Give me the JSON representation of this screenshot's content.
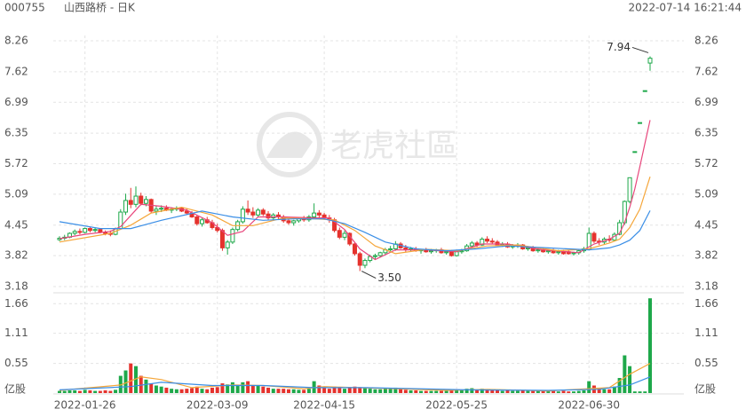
{
  "chart_data": {
    "type": "candlestick",
    "symbol": "000755",
    "title": "山西路桥 - 日K",
    "timestamp": "2022-07-14 16:21:44",
    "up_color": "#1ea84a",
    "down_color": "#e5322d",
    "ylim": [
      3.18,
      8.26
    ],
    "yticks": [
      3.18,
      3.82,
      4.45,
      5.09,
      5.72,
      6.35,
      6.99,
      7.62,
      8.26
    ],
    "volume_ylim": [
      0,
      1.78
    ],
    "volume_yticks": [
      0.55,
      1.11,
      1.66
    ],
    "volume_unit": "亿股",
    "low_label": {
      "value": 3.5,
      "label": "3.50"
    },
    "categories": [
      null,
      null,
      null,
      null,
      null,
      "2022-01-26",
      null,
      null,
      null,
      null,
      null,
      null,
      null,
      null,
      null,
      null,
      null,
      null,
      null,
      null,
      null,
      null,
      null,
      null,
      null,
      null,
      null,
      null,
      null,
      null,
      null,
      "2022-03-09",
      null,
      null,
      null,
      null,
      null,
      null,
      null,
      null,
      null,
      null,
      null,
      null,
      null,
      null,
      null,
      null,
      null,
      null,
      null,
      null,
      "2022-04-15",
      null,
      null,
      null,
      null,
      null,
      null,
      null,
      null,
      null,
      null,
      null,
      null,
      null,
      null,
      null,
      null,
      null,
      null,
      null,
      null,
      null,
      null,
      null,
      null,
      null,
      "2022-05-25",
      null,
      null,
      null,
      null,
      null,
      null,
      null,
      null,
      null,
      null,
      null,
      null,
      null,
      null,
      null,
      null,
      null,
      null,
      null,
      null,
      null,
      null,
      null,
      null,
      null,
      "2022-06-30",
      null,
      null,
      null,
      null,
      null,
      null,
      null,
      null,
      null,
      null,
      null,
      null
    ],
    "ohlc": [
      [
        4.15,
        4.22,
        4.12,
        4.18
      ],
      [
        4.18,
        4.25,
        4.14,
        4.2
      ],
      [
        4.2,
        4.3,
        4.18,
        4.28
      ],
      [
        4.28,
        4.36,
        4.24,
        4.32
      ],
      [
        4.32,
        4.38,
        4.26,
        4.3
      ],
      [
        4.3,
        4.4,
        4.28,
        4.38
      ],
      [
        4.38,
        4.42,
        4.3,
        4.34
      ],
      [
        4.34,
        4.4,
        4.3,
        4.36
      ],
      [
        4.36,
        4.38,
        4.28,
        4.3
      ],
      [
        4.3,
        4.34,
        4.24,
        4.28
      ],
      [
        4.28,
        4.34,
        4.22,
        4.26
      ],
      [
        4.26,
        4.4,
        4.24,
        4.38
      ],
      [
        4.38,
        4.78,
        4.36,
        4.72
      ],
      [
        4.72,
        5.1,
        4.66,
        4.96
      ],
      [
        4.96,
        5.22,
        4.8,
        4.88
      ],
      [
        4.88,
        5.25,
        4.82,
        5.05
      ],
      [
        5.05,
        5.12,
        4.86,
        4.9
      ],
      [
        4.9,
        5.05,
        4.84,
        4.98
      ],
      [
        4.98,
        5.0,
        4.7,
        4.74
      ],
      [
        4.74,
        4.84,
        4.66,
        4.78
      ],
      [
        4.78,
        4.86,
        4.72,
        4.8
      ],
      [
        4.8,
        4.86,
        4.74,
        4.76
      ],
      [
        4.76,
        4.82,
        4.7,
        4.78
      ],
      [
        4.78,
        4.84,
        4.74,
        4.8
      ],
      [
        4.8,
        4.82,
        4.72,
        4.74
      ],
      [
        4.74,
        4.8,
        4.66,
        4.7
      ],
      [
        4.7,
        4.74,
        4.6,
        4.62
      ],
      [
        4.62,
        4.66,
        4.44,
        4.48
      ],
      [
        4.48,
        4.6,
        4.42,
        4.56
      ],
      [
        4.56,
        4.62,
        4.48,
        4.5
      ],
      [
        4.5,
        4.56,
        4.36,
        4.4
      ],
      [
        4.4,
        4.48,
        4.3,
        4.34
      ],
      [
        4.34,
        4.38,
        3.92,
        3.98
      ],
      [
        3.98,
        4.14,
        3.84,
        4.1
      ],
      [
        4.1,
        4.4,
        4.06,
        4.36
      ],
      [
        4.36,
        4.56,
        4.32,
        4.52
      ],
      [
        4.52,
        4.84,
        4.48,
        4.78
      ],
      [
        4.78,
        4.96,
        4.66,
        4.72
      ],
      [
        4.72,
        4.82,
        4.6,
        4.66
      ],
      [
        4.66,
        4.8,
        4.62,
        4.76
      ],
      [
        4.76,
        4.8,
        4.64,
        4.68
      ],
      [
        4.68,
        4.74,
        4.56,
        4.6
      ],
      [
        4.6,
        4.7,
        4.56,
        4.66
      ],
      [
        4.66,
        4.72,
        4.58,
        4.62
      ],
      [
        4.62,
        4.66,
        4.5,
        4.54
      ],
      [
        4.54,
        4.6,
        4.46,
        4.5
      ],
      [
        4.5,
        4.56,
        4.44,
        4.54
      ],
      [
        4.54,
        4.62,
        4.5,
        4.58
      ],
      [
        4.58,
        4.64,
        4.52,
        4.56
      ],
      [
        4.56,
        4.66,
        4.52,
        4.62
      ],
      [
        4.62,
        4.9,
        4.6,
        4.7
      ],
      [
        4.7,
        4.76,
        4.6,
        4.66
      ],
      [
        4.66,
        4.7,
        4.56,
        4.6
      ],
      [
        4.6,
        4.66,
        4.5,
        4.56
      ],
      [
        4.56,
        4.6,
        4.3,
        4.34
      ],
      [
        4.34,
        4.4,
        4.16,
        4.2
      ],
      [
        4.2,
        4.34,
        4.14,
        4.28
      ],
      [
        4.28,
        4.3,
        4.02,
        4.06
      ],
      [
        4.06,
        4.1,
        3.82,
        3.86
      ],
      [
        3.86,
        3.9,
        3.5,
        3.62
      ],
      [
        3.62,
        3.76,
        3.56,
        3.72
      ],
      [
        3.72,
        3.84,
        3.68,
        3.8
      ],
      [
        3.8,
        3.86,
        3.74,
        3.82
      ],
      [
        3.82,
        3.9,
        3.78,
        3.88
      ],
      [
        3.88,
        3.98,
        3.84,
        3.94
      ],
      [
        3.94,
        4.02,
        3.88,
        3.96
      ],
      [
        3.96,
        4.12,
        3.92,
        4.06
      ],
      [
        4.06,
        4.1,
        3.96,
        3.98
      ],
      [
        3.98,
        4.04,
        3.9,
        3.94
      ],
      [
        3.94,
        4.0,
        3.9,
        3.96
      ],
      [
        3.96,
        4.0,
        3.9,
        3.92
      ],
      [
        3.92,
        3.96,
        3.86,
        3.94
      ],
      [
        3.94,
        3.98,
        3.88,
        3.9
      ],
      [
        3.9,
        3.96,
        3.86,
        3.92
      ],
      [
        3.92,
        3.96,
        3.88,
        3.94
      ],
      [
        3.94,
        3.98,
        3.86,
        3.88
      ],
      [
        3.88,
        3.94,
        3.84,
        3.9
      ],
      [
        3.9,
        3.94,
        3.8,
        3.82
      ],
      [
        3.82,
        3.92,
        3.8,
        3.9
      ],
      [
        3.9,
        3.96,
        3.86,
        3.92
      ],
      [
        3.92,
        4.06,
        3.9,
        4.02
      ],
      [
        4.02,
        4.12,
        3.98,
        4.08
      ],
      [
        4.08,
        4.12,
        4.0,
        4.04
      ],
      [
        4.04,
        4.2,
        4.02,
        4.16
      ],
      [
        4.16,
        4.22,
        4.08,
        4.12
      ],
      [
        4.12,
        4.18,
        4.06,
        4.1
      ],
      [
        4.1,
        4.14,
        4.02,
        4.04
      ],
      [
        4.04,
        4.1,
        4.0,
        4.06
      ],
      [
        4.06,
        4.1,
        3.98,
        4.0
      ],
      [
        4.0,
        4.06,
        3.96,
        4.02
      ],
      [
        4.02,
        4.08,
        3.98,
        4.04
      ],
      [
        4.04,
        4.06,
        3.94,
        3.96
      ],
      [
        3.96,
        4.02,
        3.92,
        3.98
      ],
      [
        3.98,
        4.02,
        3.9,
        3.92
      ],
      [
        3.92,
        3.98,
        3.88,
        3.94
      ],
      [
        3.94,
        3.98,
        3.88,
        3.9
      ],
      [
        3.9,
        3.96,
        3.86,
        3.92
      ],
      [
        3.92,
        3.96,
        3.86,
        3.88
      ],
      [
        3.88,
        3.94,
        3.84,
        3.9
      ],
      [
        3.9,
        3.94,
        3.84,
        3.86
      ],
      [
        3.9,
        3.94,
        3.84,
        3.86
      ],
      [
        3.86,
        3.9,
        3.82,
        3.88
      ],
      [
        3.88,
        3.94,
        3.84,
        3.92
      ],
      [
        3.92,
        4.0,
        3.88,
        3.96
      ],
      [
        3.96,
        4.4,
        3.94,
        4.28
      ],
      [
        4.28,
        4.32,
        4.08,
        4.12
      ],
      [
        4.12,
        4.18,
        4.04,
        4.1
      ],
      [
        4.1,
        4.2,
        4.06,
        4.16
      ],
      [
        4.16,
        4.24,
        4.1,
        4.14
      ],
      [
        4.14,
        4.3,
        4.12,
        4.26
      ],
      [
        4.26,
        4.56,
        4.24,
        4.5
      ],
      [
        4.5,
        4.96,
        4.46,
        4.94
      ],
      [
        4.94,
        5.43,
        4.9,
        5.43
      ],
      [
        5.97,
        5.97,
        5.97,
        5.97
      ],
      [
        6.57,
        6.57,
        6.57,
        6.57
      ],
      [
        7.23,
        7.23,
        7.23,
        7.23
      ],
      [
        7.8,
        7.94,
        7.64,
        7.9
      ]
    ],
    "volume": [
      0.04,
      0.04,
      0.05,
      0.05,
      0.04,
      0.06,
      0.05,
      0.04,
      0.04,
      0.05,
      0.04,
      0.06,
      0.32,
      0.42,
      0.55,
      0.5,
      0.32,
      0.25,
      0.18,
      0.14,
      0.12,
      0.1,
      0.08,
      0.07,
      0.07,
      0.08,
      0.09,
      0.12,
      0.08,
      0.07,
      0.1,
      0.11,
      0.18,
      0.16,
      0.2,
      0.14,
      0.2,
      0.22,
      0.15,
      0.14,
      0.12,
      0.1,
      0.08,
      0.08,
      0.08,
      0.07,
      0.07,
      0.06,
      0.06,
      0.08,
      0.22,
      0.14,
      0.1,
      0.08,
      0.12,
      0.1,
      0.08,
      0.1,
      0.12,
      0.11,
      0.09,
      0.08,
      0.07,
      0.07,
      0.08,
      0.08,
      0.1,
      0.08,
      0.06,
      0.05,
      0.05,
      0.04,
      0.04,
      0.04,
      0.04,
      0.04,
      0.04,
      0.05,
      0.05,
      0.05,
      0.08,
      0.09,
      0.06,
      0.08,
      0.07,
      0.06,
      0.05,
      0.04,
      0.05,
      0.04,
      0.04,
      0.05,
      0.04,
      0.04,
      0.04,
      0.04,
      0.04,
      0.04,
      0.03,
      0.04,
      0.03,
      0.03,
      0.04,
      0.05,
      0.22,
      0.14,
      0.08,
      0.07,
      0.07,
      0.12,
      0.28,
      0.7,
      0.5,
      0.03,
      0.03,
      0.03,
      1.76
    ],
    "ma": [
      {
        "color": "#e8467c",
        "x": [
          0,
          5,
          10,
          12,
          14,
          16,
          20,
          25,
          30,
          33,
          36,
          39,
          44,
          50,
          53,
          56,
          59,
          62,
          66,
          72,
          78,
          83,
          88,
          95,
          102,
          105,
          108,
          110,
          111,
          112,
          113,
          114,
          115,
          116
        ],
        "values": [
          4.17,
          4.26,
          4.32,
          4.42,
          4.65,
          4.88,
          4.84,
          4.76,
          4.5,
          4.24,
          4.32,
          4.62,
          4.62,
          4.6,
          4.6,
          4.36,
          3.96,
          3.74,
          3.94,
          3.94,
          3.9,
          4.06,
          4.06,
          3.94,
          3.88,
          4.06,
          4.16,
          4.28,
          4.5,
          4.82,
          5.2,
          5.66,
          6.15,
          6.62
        ]
      },
      {
        "color": "#f5a63a",
        "x": [
          0,
          10,
          14,
          18,
          24,
          30,
          34,
          38,
          44,
          50,
          54,
          58,
          62,
          66,
          72,
          78,
          84,
          90,
          98,
          104,
          108,
          110,
          112,
          114,
          116
        ],
        "values": [
          4.1,
          4.28,
          4.45,
          4.7,
          4.82,
          4.66,
          4.44,
          4.44,
          4.6,
          4.58,
          4.56,
          4.34,
          4.02,
          3.86,
          3.95,
          3.92,
          4.02,
          4.04,
          3.92,
          3.96,
          4.08,
          4.16,
          4.4,
          4.78,
          5.45
        ]
      },
      {
        "color": "#3a8ee6",
        "x": [
          0,
          8,
          14,
          20,
          28,
          34,
          40,
          46,
          52,
          56,
          60,
          64,
          70,
          76,
          82,
          88,
          96,
          104,
          108,
          110,
          112,
          114,
          116
        ],
        "values": [
          4.52,
          4.38,
          4.38,
          4.55,
          4.74,
          4.62,
          4.55,
          4.58,
          4.58,
          4.48,
          4.3,
          4.1,
          3.96,
          3.92,
          3.96,
          4.02,
          3.98,
          3.94,
          3.98,
          4.04,
          4.14,
          4.34,
          4.75
        ]
      }
    ],
    "volume_ma": [
      {
        "color": "#f5a63a",
        "x": [
          0,
          12,
          16,
          20,
          26,
          34,
          40,
          48,
          52,
          58,
          66,
          76,
          84,
          96,
          104,
          108,
          112,
          116
        ],
        "values": [
          0.05,
          0.15,
          0.3,
          0.25,
          0.1,
          0.15,
          0.14,
          0.08,
          0.12,
          0.1,
          0.08,
          0.05,
          0.07,
          0.04,
          0.08,
          0.1,
          0.35,
          0.55
        ]
      },
      {
        "color": "#3a8ee6",
        "x": [
          0,
          14,
          20,
          30,
          40,
          50,
          60,
          70,
          80,
          96,
          106,
          112,
          116
        ],
        "values": [
          0.06,
          0.12,
          0.2,
          0.14,
          0.14,
          0.1,
          0.1,
          0.08,
          0.06,
          0.05,
          0.07,
          0.15,
          0.3
        ]
      }
    ]
  }
}
